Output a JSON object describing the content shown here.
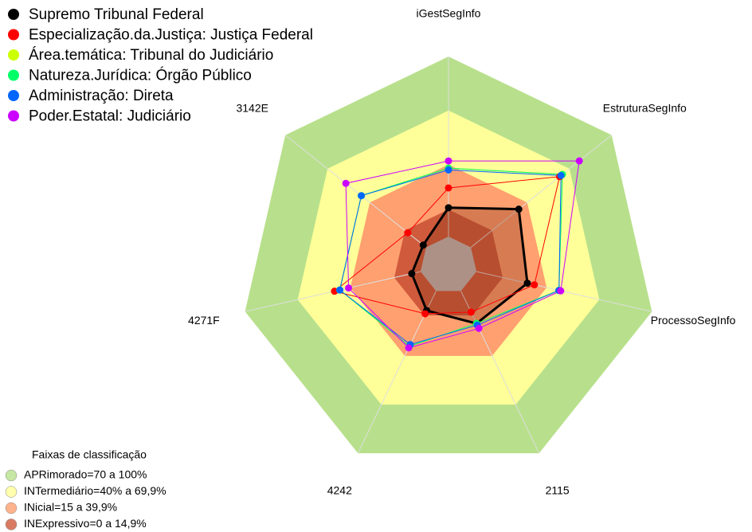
{
  "chart_data": {
    "type": "radar",
    "categories": [
      "iGestSegInfo",
      "EstruturaSegInfo",
      "ProcessoSegInfo",
      "2115",
      "4242",
      "4271F",
      "3142E"
    ],
    "rlim": [
      0,
      100
    ],
    "series": [
      {
        "name": "Supremo Tribunal Federal",
        "color": "#000000",
        "fill": "#8b3a1a",
        "values": [
          16,
          34,
          29,
          20,
          12,
          5,
          2
        ]
      },
      {
        "name": "Especialização.da.Justiça: Justiça Federal",
        "color": "#ff0000",
        "values": [
          27,
          63,
          33,
          13,
          14,
          49,
          13
        ]
      },
      {
        "name": "Área.temática: Tribunal do Judiciário",
        "color": "#ccff00",
        "values": [
          38,
          65,
          47,
          20,
          34,
          46,
          46
        ]
      },
      {
        "name": "Natureza.Jurídica: Órgão Público",
        "color": "#00ff66",
        "values": [
          38,
          65,
          47,
          20,
          34,
          46,
          46
        ]
      },
      {
        "name": "Administração: Direta",
        "color": "#0066ff",
        "values": [
          37,
          64,
          47,
          21,
          33,
          46,
          46
        ]
      },
      {
        "name": "Poder.Estatal: Judiciário",
        "color": "#cc00ff",
        "values": [
          42,
          77,
          48,
          23,
          35,
          41,
          57
        ]
      }
    ],
    "bands_title": "Faixas de classificação",
    "bands": [
      {
        "name": "APRimorado=70 a 100%",
        "color": "#b8e08c",
        "from": 70,
        "to": 100
      },
      {
        "name": "INTermediário=40% a 69,9%",
        "color": "#ffff99",
        "from": 40,
        "to": 70
      },
      {
        "name": "INicial=15 a 39,9%",
        "color": "#ffa070",
        "from": 15,
        "to": 40
      },
      {
        "name": "INExpressivo=0 a 14,9%",
        "color": "#d05a3c",
        "from": 0,
        "to": 15
      }
    ]
  }
}
